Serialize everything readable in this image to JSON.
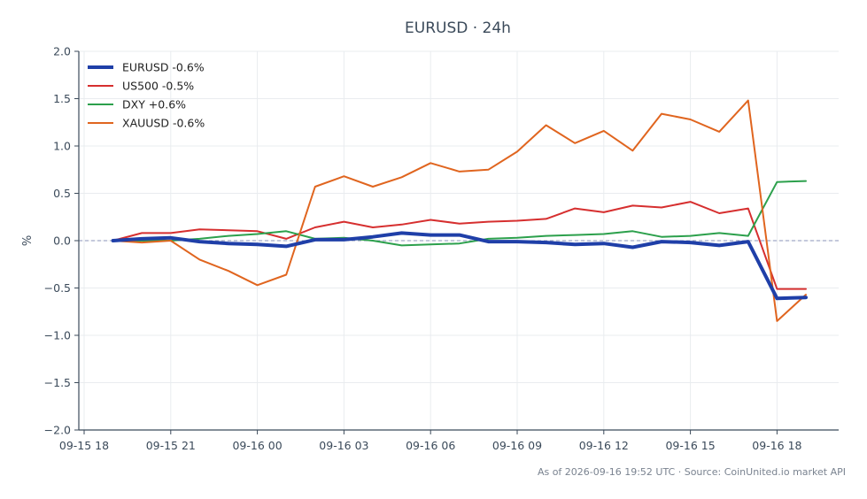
{
  "chart_data": {
    "type": "line",
    "title": "EURUSD · 24h",
    "ylabel": "%",
    "xlabel": "",
    "ylim": [
      -2.0,
      2.0
    ],
    "yticks": [
      "−2.0",
      "−1.5",
      "−1.0",
      "−0.5",
      "0.0",
      "0.5",
      "1.0",
      "1.5",
      "2.0"
    ],
    "ytick_values": [
      -2.0,
      -1.5,
      -1.0,
      -0.5,
      0.0,
      0.5,
      1.0,
      1.5,
      2.0
    ],
    "xticks": [
      "09-15 18",
      "09-15 21",
      "09-16 00",
      "09-16 03",
      "09-16 06",
      "09-16 09",
      "09-16 12",
      "09-16 15",
      "09-16 18"
    ],
    "x": [
      "09-15 19",
      "09-15 20",
      "09-15 21",
      "09-15 22",
      "09-15 23",
      "09-16 00",
      "09-16 01",
      "09-16 02",
      "09-16 03",
      "09-16 04",
      "09-16 05",
      "09-16 06",
      "09-16 07",
      "09-16 08",
      "09-16 09",
      "09-16 10",
      "09-16 11",
      "09-16 12",
      "09-16 13",
      "09-16 14",
      "09-16 15",
      "09-16 16",
      "09-16 17",
      "09-16 18",
      "09-16 19"
    ],
    "grid": true,
    "legend_position": "top-left",
    "zero_line": true,
    "series": [
      {
        "name": "EURUSD -0.6%",
        "color": "#1f3fa8",
        "values": [
          0.0,
          0.02,
          0.03,
          -0.01,
          -0.03,
          -0.04,
          -0.06,
          0.01,
          0.01,
          0.04,
          0.08,
          0.06,
          0.06,
          -0.01,
          -0.01,
          -0.02,
          -0.04,
          -0.03,
          -0.07,
          -0.01,
          -0.02,
          -0.05,
          -0.01,
          -0.61,
          -0.6
        ]
      },
      {
        "name": "US500 -0.5%",
        "color": "#d62f2f",
        "values": [
          0.0,
          0.08,
          0.08,
          0.12,
          0.11,
          0.1,
          0.02,
          0.14,
          0.2,
          0.14,
          0.17,
          0.22,
          0.18,
          0.2,
          0.21,
          0.23,
          0.34,
          0.3,
          0.37,
          0.35,
          0.41,
          0.29,
          0.34,
          -0.51,
          -0.51
        ]
      },
      {
        "name": "DXY +0.6%",
        "color": "#2ca04c",
        "values": [
          0.0,
          0.0,
          0.0,
          0.02,
          0.05,
          0.07,
          0.1,
          0.02,
          0.03,
          0.0,
          -0.05,
          -0.04,
          -0.03,
          0.02,
          0.03,
          0.05,
          0.06,
          0.07,
          0.1,
          0.04,
          0.05,
          0.08,
          0.05,
          0.62,
          0.63
        ]
      },
      {
        "name": "XAUUSD -0.6%",
        "color": "#e0651f",
        "values": [
          0.0,
          -0.02,
          0.0,
          -0.2,
          -0.32,
          -0.47,
          -0.36,
          0.57,
          0.68,
          0.57,
          0.67,
          0.82,
          0.73,
          0.75,
          0.94,
          1.22,
          1.03,
          1.16,
          0.95,
          1.34,
          1.28,
          1.15,
          1.48,
          -0.85,
          -0.57
        ]
      }
    ]
  },
  "footer": "As of 2026-09-16 19:52 UTC · Source: CoinUnited.io market API"
}
